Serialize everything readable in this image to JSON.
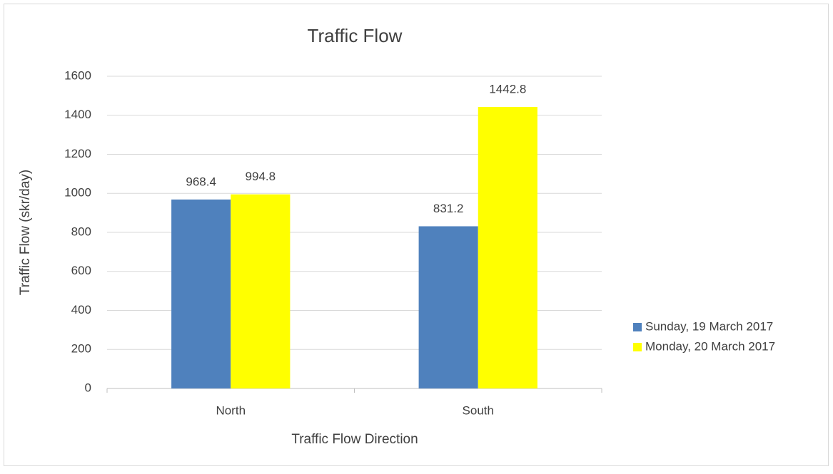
{
  "chart_data": {
    "type": "bar",
    "title": "Traffic Flow",
    "x_label": "Traffic Flow Direction",
    "y_label": "Traffic Flow (skr/day)",
    "categories": [
      "North",
      "South"
    ],
    "series": [
      {
        "name": "Sunday, 19 March 2017",
        "color": "#4f81bd",
        "values": [
          968.4,
          831.2
        ]
      },
      {
        "name": "Monday, 20 March 2017",
        "color": "#ffff00",
        "values": [
          994.8,
          1442.8
        ]
      }
    ],
    "ylim": [
      0,
      1600
    ],
    "yticks": [
      0,
      200,
      400,
      600,
      800,
      1000,
      1200,
      1400,
      1600
    ],
    "grid": true,
    "legend": "right"
  }
}
